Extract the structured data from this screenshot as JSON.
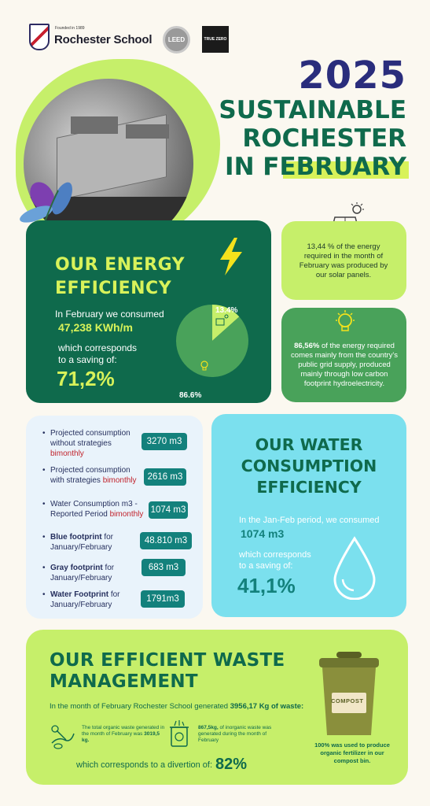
{
  "header": {
    "founded": "Founded in 1989",
    "school_name": "Rochester School",
    "leed_badge": "LEED",
    "true_zero_badge": "TRUE ZERO",
    "year": "2025",
    "title_lines": [
      "SUSTAINABLE",
      "ROCHESTER",
      "IN FEBRUARY"
    ]
  },
  "energy": {
    "title_lines": [
      "OUR ENERGY",
      "EFFICIENCY"
    ],
    "consumed_intro": "In February we consumed",
    "consumed_value": "47,238 KWh/m",
    "saving_intro_1": "which corresponds",
    "saving_intro_2": "to a saving of:",
    "saving_value": "71,2%",
    "pie": [
      {
        "label": "13.4%",
        "value": 13.4,
        "color": "#c6ef6a"
      },
      {
        "label": "86.6%",
        "value": 86.6,
        "color": "#49a25a"
      }
    ],
    "solar_text": "13,44 % of the energy required in the month of February was produced by our solar panels.",
    "grid_text_bold": "86,56%",
    "grid_text": " of the energy required comes mainly from the country's public grid supply, produced mainly through low carbon footprint hydroelectricity."
  },
  "water": {
    "items": [
      {
        "pre": "",
        "bold": "",
        "text": "Projected consumption without strategies ",
        "red": "bimonthly",
        "value": "3270 m3"
      },
      {
        "pre": "",
        "bold": "",
        "text": "Projected consumption with strategies ",
        "red": "bimonthly",
        "value": "2616 m3"
      },
      {
        "pre": "",
        "bold": "",
        "text": "Water Consumption m3 - Reported Period ",
        "red": "bimonthly",
        "value": "1074 m3"
      },
      {
        "pre": "",
        "bold": "Blue footprint",
        "text": " for January/February",
        "red": "",
        "value": "48.810 m3"
      },
      {
        "pre": "",
        "bold": "Gray footprint",
        "text": " for January/February",
        "red": "",
        "value": "683 m3"
      },
      {
        "pre": "",
        "bold": "Water Footprint",
        "text": " for January/February",
        "red": "",
        "value": "1791m3"
      }
    ],
    "title_lines": [
      "OUR WATER",
      "CONSUMPTION",
      "EFFICIENCY"
    ],
    "period_text": "In the Jan-Feb period, we consumed",
    "consumed_value": "1074 m3",
    "saving_intro_1": "which corresponds",
    "saving_intro_2": "to a saving of:",
    "saving_value": "41,1%"
  },
  "waste": {
    "title_lines": [
      "OUR EFFICIENT WASTE",
      "MANAGEMENT"
    ],
    "generated_text": "In the month of February Rochester School generated ",
    "generated_value": "3956,17 Kg of waste:",
    "organic_text": "The total organic waste generated in the month of February was ",
    "organic_value": "3019,5 kg.",
    "inorganic_value": "867,5kg,",
    "inorganic_text": " of inorganic waste was generated during the month of February",
    "diversion_text": "which corresponds to a divertion of:",
    "diversion_value": "82%",
    "compost_label": "COMPOST",
    "compost_value": "100%",
    "compost_text": "  was used to produce organic fertilizer in our compost bin."
  }
}
